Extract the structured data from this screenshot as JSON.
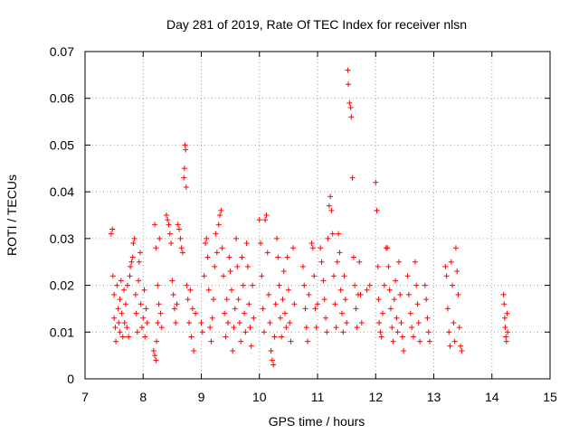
{
  "chart_data": {
    "type": "scatter",
    "title": "Day 281 of 2019, Rate Of TEC Index for receiver nlsn",
    "xlabel": "GPS time / hours",
    "ylabel": "ROTI / TECUs",
    "xlim": [
      7,
      15
    ],
    "ylim": [
      0,
      0.07
    ],
    "xticks": [
      7,
      8,
      9,
      10,
      11,
      12,
      13,
      14,
      15
    ],
    "yticks": [
      0,
      0.01,
      0.02,
      0.03,
      0.04,
      0.05,
      0.06,
      0.07
    ],
    "ytick_labels": [
      "0",
      "0.01",
      "0.02",
      "0.03",
      "0.04",
      "0.05",
      "0.06",
      "0.07"
    ],
    "grid": true,
    "marker": "+",
    "color": "#ff0000",
    "series": [
      {
        "name": "ROTI",
        "points": [
          [
            7.45,
            0.031
          ],
          [
            7.47,
            0.032
          ],
          [
            7.48,
            0.022
          ],
          [
            7.5,
            0.018
          ],
          [
            7.5,
            0.013
          ],
          [
            7.52,
            0.011
          ],
          [
            7.53,
            0.008
          ],
          [
            7.55,
            0.02
          ],
          [
            7.57,
            0.015
          ],
          [
            7.58,
            0.012
          ],
          [
            7.6,
            0.01
          ],
          [
            7.6,
            0.017
          ],
          [
            7.62,
            0.021
          ],
          [
            7.63,
            0.014
          ],
          [
            7.65,
            0.009
          ],
          [
            7.67,
            0.019
          ],
          [
            7.68,
            0.012
          ],
          [
            7.7,
            0.016
          ],
          [
            7.72,
            0.011
          ],
          [
            7.73,
            0.02
          ],
          [
            7.75,
            0.009
          ],
          [
            7.77,
            0.022
          ],
          [
            7.78,
            0.024
          ],
          [
            7.8,
            0.025
          ],
          [
            7.82,
            0.026
          ],
          [
            7.83,
            0.029
          ],
          [
            7.85,
            0.03
          ],
          [
            7.87,
            0.018
          ],
          [
            7.88,
            0.014
          ],
          [
            7.9,
            0.01
          ],
          [
            7.92,
            0.021
          ],
          [
            7.93,
            0.025
          ],
          [
            7.95,
            0.027
          ],
          [
            7.96,
            0.016
          ],
          [
            7.98,
            0.011
          ],
          [
            8.0,
            0.013
          ],
          [
            8.02,
            0.019
          ],
          [
            8.03,
            0.009
          ],
          [
            8.05,
            0.015
          ],
          [
            8.07,
            0.012
          ],
          [
            8.18,
            0.006
          ],
          [
            8.2,
            0.005
          ],
          [
            8.22,
            0.004
          ],
          [
            8.23,
            0.008
          ],
          [
            8.25,
            0.012
          ],
          [
            8.2,
            0.033
          ],
          [
            8.22,
            0.028
          ],
          [
            8.25,
            0.02
          ],
          [
            8.27,
            0.016
          ],
          [
            8.28,
            0.03
          ],
          [
            8.3,
            0.014
          ],
          [
            8.32,
            0.011
          ],
          [
            8.4,
            0.035
          ],
          [
            8.42,
            0.034
          ],
          [
            8.44,
            0.033
          ],
          [
            8.46,
            0.031
          ],
          [
            8.48,
            0.029
          ],
          [
            8.5,
            0.021
          ],
          [
            8.52,
            0.018
          ],
          [
            8.54,
            0.015
          ],
          [
            8.56,
            0.012
          ],
          [
            8.58,
            0.016
          ],
          [
            8.6,
            0.033
          ],
          [
            8.62,
            0.032
          ],
          [
            8.64,
            0.03
          ],
          [
            8.66,
            0.028
          ],
          [
            8.68,
            0.027
          ],
          [
            8.7,
            0.043
          ],
          [
            8.71,
            0.045
          ],
          [
            8.72,
            0.05
          ],
          [
            8.73,
            0.049
          ],
          [
            8.74,
            0.041
          ],
          [
            8.75,
            0.02
          ],
          [
            8.77,
            0.017
          ],
          [
            8.79,
            0.012
          ],
          [
            8.81,
            0.019
          ],
          [
            8.83,
            0.009
          ],
          [
            8.85,
            0.015
          ],
          [
            8.87,
            0.006
          ],
          [
            8.9,
            0.014
          ],
          [
            9.0,
            0.012
          ],
          [
            9.02,
            0.01
          ],
          [
            9.05,
            0.022
          ],
          [
            9.07,
            0.029
          ],
          [
            9.09,
            0.03
          ],
          [
            9.11,
            0.026
          ],
          [
            9.13,
            0.019
          ],
          [
            9.15,
            0.011
          ],
          [
            9.17,
            0.008
          ],
          [
            9.19,
            0.013
          ],
          [
            9.21,
            0.017
          ],
          [
            9.23,
            0.024
          ],
          [
            9.25,
            0.031
          ],
          [
            9.27,
            0.027
          ],
          [
            9.3,
            0.033
          ],
          [
            9.32,
            0.035
          ],
          [
            9.34,
            0.036
          ],
          [
            9.36,
            0.028
          ],
          [
            9.38,
            0.022
          ],
          [
            9.4,
            0.014
          ],
          [
            9.42,
            0.009
          ],
          [
            9.44,
            0.017
          ],
          [
            9.46,
            0.012
          ],
          [
            9.48,
            0.026
          ],
          [
            9.5,
            0.023
          ],
          [
            9.52,
            0.019
          ],
          [
            9.54,
            0.006
          ],
          [
            9.56,
            0.011
          ],
          [
            9.58,
            0.015
          ],
          [
            9.6,
            0.03
          ],
          [
            9.62,
            0.024
          ],
          [
            9.64,
            0.017
          ],
          [
            9.66,
            0.012
          ],
          [
            9.68,
            0.008
          ],
          [
            9.7,
            0.026
          ],
          [
            9.72,
            0.02
          ],
          [
            9.74,
            0.014
          ],
          [
            9.76,
            0.01
          ],
          [
            9.78,
            0.029
          ],
          [
            9.8,
            0.024
          ],
          [
            9.82,
            0.016
          ],
          [
            9.84,
            0.011
          ],
          [
            9.86,
            0.007
          ],
          [
            9.88,
            0.02
          ],
          [
            9.9,
            0.013
          ],
          [
            10.0,
            0.034
          ],
          [
            10.02,
            0.029
          ],
          [
            10.04,
            0.022
          ],
          [
            10.06,
            0.015
          ],
          [
            10.08,
            0.01
          ],
          [
            10.1,
            0.034
          ],
          [
            10.12,
            0.035
          ],
          [
            10.14,
            0.027
          ],
          [
            10.16,
            0.018
          ],
          [
            10.18,
            0.012
          ],
          [
            10.2,
            0.006
          ],
          [
            10.22,
            0.004
          ],
          [
            10.24,
            0.003
          ],
          [
            10.26,
            0.009
          ],
          [
            10.28,
            0.016
          ],
          [
            10.3,
            0.03
          ],
          [
            10.32,
            0.026
          ],
          [
            10.34,
            0.02
          ],
          [
            10.36,
            0.013
          ],
          [
            10.38,
            0.009
          ],
          [
            10.4,
            0.017
          ],
          [
            10.42,
            0.023
          ],
          [
            10.44,
            0.014
          ],
          [
            10.46,
            0.011
          ],
          [
            10.48,
            0.026
          ],
          [
            10.5,
            0.019
          ],
          [
            10.52,
            0.012
          ],
          [
            10.54,
            0.008
          ],
          [
            10.58,
            0.028
          ],
          [
            10.6,
            0.016
          ],
          [
            10.75,
            0.024
          ],
          [
            10.77,
            0.02
          ],
          [
            10.79,
            0.015
          ],
          [
            10.81,
            0.011
          ],
          [
            10.83,
            0.008
          ],
          [
            10.85,
            0.018
          ],
          [
            10.9,
            0.029
          ],
          [
            10.92,
            0.028
          ],
          [
            10.94,
            0.022
          ],
          [
            10.96,
            0.015
          ],
          [
            10.98,
            0.011
          ],
          [
            11.0,
            0.016
          ],
          [
            11.05,
            0.028
          ],
          [
            11.07,
            0.025
          ],
          [
            11.1,
            0.021
          ],
          [
            11.12,
            0.017
          ],
          [
            11.14,
            0.013
          ],
          [
            11.16,
            0.01
          ],
          [
            11.18,
            0.03
          ],
          [
            11.2,
            0.037
          ],
          [
            11.22,
            0.039
          ],
          [
            11.24,
            0.036
          ],
          [
            11.26,
            0.031
          ],
          [
            11.28,
            0.022
          ],
          [
            11.3,
            0.016
          ],
          [
            11.32,
            0.011
          ],
          [
            11.34,
            0.025
          ],
          [
            11.36,
            0.031
          ],
          [
            11.38,
            0.027
          ],
          [
            11.4,
            0.019
          ],
          [
            11.42,
            0.014
          ],
          [
            11.44,
            0.01
          ],
          [
            11.46,
            0.022
          ],
          [
            11.48,
            0.017
          ],
          [
            11.5,
            0.012
          ],
          [
            11.52,
            0.066
          ],
          [
            11.53,
            0.063
          ],
          [
            11.55,
            0.059
          ],
          [
            11.57,
            0.058
          ],
          [
            11.58,
            0.056
          ],
          [
            11.6,
            0.043
          ],
          [
            11.62,
            0.026
          ],
          [
            11.64,
            0.02
          ],
          [
            11.66,
            0.015
          ],
          [
            11.68,
            0.011
          ],
          [
            11.7,
            0.018
          ],
          [
            11.72,
            0.025
          ],
          [
            11.74,
            0.018
          ],
          [
            11.76,
            0.012
          ],
          [
            11.85,
            0.019
          ],
          [
            11.9,
            0.02
          ],
          [
            12.0,
            0.042
          ],
          [
            12.02,
            0.036
          ],
          [
            12.04,
            0.024
          ],
          [
            12.05,
            0.017
          ],
          [
            12.06,
            0.012
          ],
          [
            12.08,
            0.01
          ],
          [
            12.1,
            0.009
          ],
          [
            12.12,
            0.014
          ],
          [
            12.15,
            0.02
          ],
          [
            12.18,
            0.028
          ],
          [
            12.2,
            0.028
          ],
          [
            12.22,
            0.024
          ],
          [
            12.24,
            0.019
          ],
          [
            12.26,
            0.015
          ],
          [
            12.28,
            0.011
          ],
          [
            12.3,
            0.008
          ],
          [
            12.32,
            0.017
          ],
          [
            12.34,
            0.021
          ],
          [
            12.36,
            0.013
          ],
          [
            12.38,
            0.01
          ],
          [
            12.4,
            0.025
          ],
          [
            12.42,
            0.018
          ],
          [
            12.44,
            0.012
          ],
          [
            12.46,
            0.009
          ],
          [
            12.48,
            0.006
          ],
          [
            12.55,
            0.022
          ],
          [
            12.57,
            0.018
          ],
          [
            12.6,
            0.014
          ],
          [
            12.62,
            0.011
          ],
          [
            12.65,
            0.009
          ],
          [
            12.68,
            0.025
          ],
          [
            12.7,
            0.02
          ],
          [
            12.72,
            0.016
          ],
          [
            12.74,
            0.012
          ],
          [
            12.76,
            0.008
          ],
          [
            12.85,
            0.02
          ],
          [
            12.87,
            0.017
          ],
          [
            12.89,
            0.013
          ],
          [
            12.91,
            0.01
          ],
          [
            12.93,
            0.008
          ],
          [
            13.2,
            0.024
          ],
          [
            13.22,
            0.022
          ],
          [
            13.24,
            0.015
          ],
          [
            13.26,
            0.01
          ],
          [
            13.28,
            0.007
          ],
          [
            13.3,
            0.025
          ],
          [
            13.32,
            0.02
          ],
          [
            13.34,
            0.012
          ],
          [
            13.36,
            0.008
          ],
          [
            13.38,
            0.028
          ],
          [
            13.4,
            0.023
          ],
          [
            13.42,
            0.018
          ],
          [
            13.44,
            0.011
          ],
          [
            13.46,
            0.007
          ],
          [
            13.48,
            0.006
          ],
          [
            14.2,
            0.018
          ],
          [
            14.21,
            0.016
          ],
          [
            14.22,
            0.013
          ],
          [
            14.23,
            0.011
          ],
          [
            14.24,
            0.009
          ],
          [
            14.25,
            0.008
          ],
          [
            14.26,
            0.014
          ],
          [
            14.27,
            0.01
          ]
        ]
      }
    ]
  }
}
